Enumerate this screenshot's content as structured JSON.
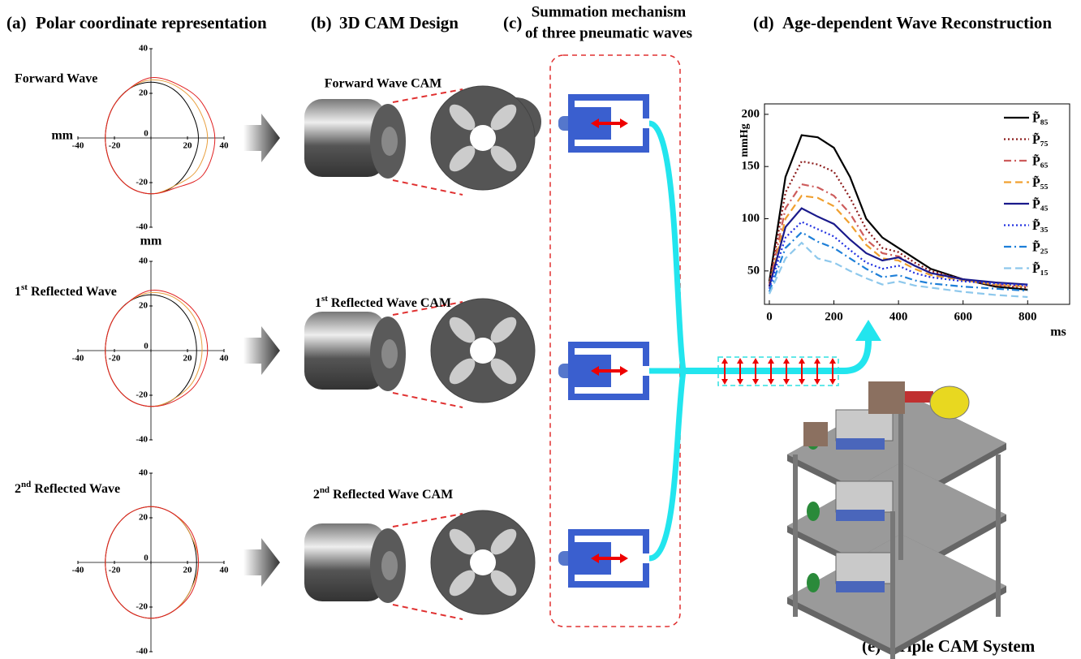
{
  "panels": {
    "a": {
      "letter": "(a)",
      "title": "Polar coordinate representation"
    },
    "b": {
      "letter": "(b)",
      "title": "3D CAM Design"
    },
    "c": {
      "letter": "(c)",
      "title_lines": [
        "Summation mechanism",
        "of three pneumatic waves"
      ]
    },
    "d": {
      "letter": "(d)",
      "title": "Age-dependent Wave Reconstruction"
    },
    "e": {
      "letter": "(e)",
      "title": "Triple CAM System"
    }
  },
  "rows": [
    {
      "wave": {
        "text": "Forward Wave"
      },
      "cam": {
        "text": "Forward Wave CAM"
      }
    },
    {
      "wave": {
        "num": "1",
        "sup": "st",
        "rest": "Reflected Wave"
      },
      "cam": {
        "num": "1",
        "sup": "st",
        "rest": "Reflected Wave CAM"
      }
    },
    {
      "wave": {
        "num": "2",
        "sup": "nd",
        "rest": "Reflected Wave"
      },
      "cam": {
        "num": "2",
        "sup": "nd",
        "rest": "Reflected Wave CAM"
      }
    }
  ],
  "chart_data": [
    {
      "type": "polar",
      "xlabel": "mm",
      "ylabel": "mm",
      "x": [
        0,
        30,
        60,
        90,
        120,
        150,
        180,
        210,
        240,
        270,
        300,
        330
      ],
      "xlim": [
        -40,
        40
      ],
      "ylim": [
        -40,
        40
      ],
      "xticks": [
        -40,
        -20,
        0,
        20,
        40
      ],
      "yticks": [
        -40,
        -20,
        20,
        40
      ],
      "series": [
        {
          "color": "#000000",
          "values": [
            26,
            25,
            25,
            25,
            25,
            25,
            25,
            25,
            25,
            25,
            25,
            25
          ]
        },
        {
          "color": "#e8a040",
          "values": [
            31,
            29,
            27,
            26,
            25,
            25,
            25,
            25,
            25,
            25,
            25,
            29
          ]
        },
        {
          "color": "#e02020",
          "values": [
            35,
            32,
            28,
            27,
            25,
            25,
            25,
            25,
            25,
            25,
            26,
            33
          ]
        }
      ]
    },
    {
      "type": "polar",
      "x": [
        0,
        30,
        60,
        90,
        120,
        150,
        180,
        210,
        240,
        270,
        300,
        330
      ],
      "xlim": [
        -40,
        40
      ],
      "ylim": [
        -40,
        40
      ],
      "xticks": [
        -40,
        -20,
        0,
        20,
        40
      ],
      "yticks": [
        -40,
        -20,
        20,
        40
      ],
      "series": [
        {
          "color": "#000000",
          "values": [
            25,
            25,
            25,
            25,
            25,
            25,
            25,
            25,
            25,
            25,
            25,
            25
          ]
        },
        {
          "color": "#e8a040",
          "values": [
            28,
            28,
            27,
            26,
            25,
            25,
            25,
            25,
            25,
            25,
            25,
            27
          ]
        },
        {
          "color": "#e02020",
          "values": [
            31,
            30,
            28,
            27,
            25,
            25,
            25,
            25,
            25,
            25,
            26,
            29
          ]
        }
      ]
    },
    {
      "type": "polar",
      "x": [
        0,
        30,
        60,
        90,
        120,
        150,
        180,
        210,
        240,
        270,
        300,
        330
      ],
      "xlim": [
        -40,
        40
      ],
      "ylim": [
        -40,
        40
      ],
      "xticks": [
        -40,
        -20,
        0,
        20,
        40
      ],
      "yticks": [
        -40,
        -20,
        20,
        40
      ],
      "series": [
        {
          "color": "#000000",
          "values": [
            25,
            25,
            25,
            25,
            25,
            25,
            25,
            25,
            25,
            25,
            25,
            25
          ]
        },
        {
          "color": "#e8a040",
          "values": [
            26,
            25,
            25,
            25,
            25,
            25,
            25,
            25,
            25,
            25,
            25,
            25
          ]
        },
        {
          "color": "#e02020",
          "values": [
            26,
            26,
            25,
            25,
            25,
            25,
            25,
            25,
            25,
            25,
            25,
            26
          ]
        }
      ]
    },
    {
      "type": "line",
      "ylabel": "mmHg",
      "xlabel": "ms",
      "x": [
        0,
        50,
        100,
        150,
        200,
        250,
        300,
        350,
        400,
        450,
        500,
        600,
        700,
        800
      ],
      "xlim": [
        -15,
        930
      ],
      "ylim": [
        18,
        210
      ],
      "xticks": [
        0,
        200,
        400,
        600,
        800
      ],
      "yticks": [
        50,
        100,
        150,
        200
      ],
      "series": [
        {
          "name": "P̃₈₅",
          "color": "#000000",
          "dash": "solid",
          "values": [
            40,
            140,
            180,
            178,
            168,
            140,
            100,
            82,
            72,
            62,
            52,
            42,
            35,
            32
          ]
        },
        {
          "name": "P̃₇₅",
          "color": "#8b1a1a",
          "dash": "dotted",
          "values": [
            38,
            125,
            155,
            152,
            145,
            120,
            90,
            72,
            68,
            58,
            50,
            42,
            36,
            34
          ]
        },
        {
          "name": "P̃₆₅",
          "color": "#cd5c5c",
          "dash": "dashdot",
          "values": [
            36,
            110,
            133,
            130,
            122,
            105,
            80,
            67,
            64,
            55,
            48,
            42,
            37,
            35
          ]
        },
        {
          "name": "P̃₅₅",
          "color": "#f0a030",
          "dash": "dashed",
          "values": [
            35,
            100,
            122,
            120,
            112,
            95,
            75,
            62,
            60,
            52,
            46,
            41,
            37,
            35
          ]
        },
        {
          "name": "P̃₄₅",
          "color": "#1a1a8b",
          "dash": "solid",
          "values": [
            35,
            92,
            110,
            102,
            95,
            80,
            67,
            60,
            63,
            55,
            48,
            42,
            39,
            37
          ]
        },
        {
          "name": "P̃₃₅",
          "color": "#2030e0",
          "dash": "dotted",
          "values": [
            33,
            82,
            97,
            90,
            83,
            70,
            58,
            52,
            55,
            48,
            44,
            40,
            38,
            36
          ]
        },
        {
          "name": "P̃₂₅",
          "color": "#1e7fd8",
          "dash": "dashdot",
          "values": [
            30,
            72,
            87,
            78,
            72,
            62,
            52,
            44,
            46,
            41,
            38,
            35,
            33,
            31
          ]
        },
        {
          "name": "P̃₁₅",
          "color": "#8ec8ec",
          "dash": "dashed",
          "values": [
            28,
            62,
            77,
            62,
            58,
            50,
            43,
            37,
            40,
            36,
            34,
            30,
            27,
            25
          ]
        }
      ]
    }
  ]
}
